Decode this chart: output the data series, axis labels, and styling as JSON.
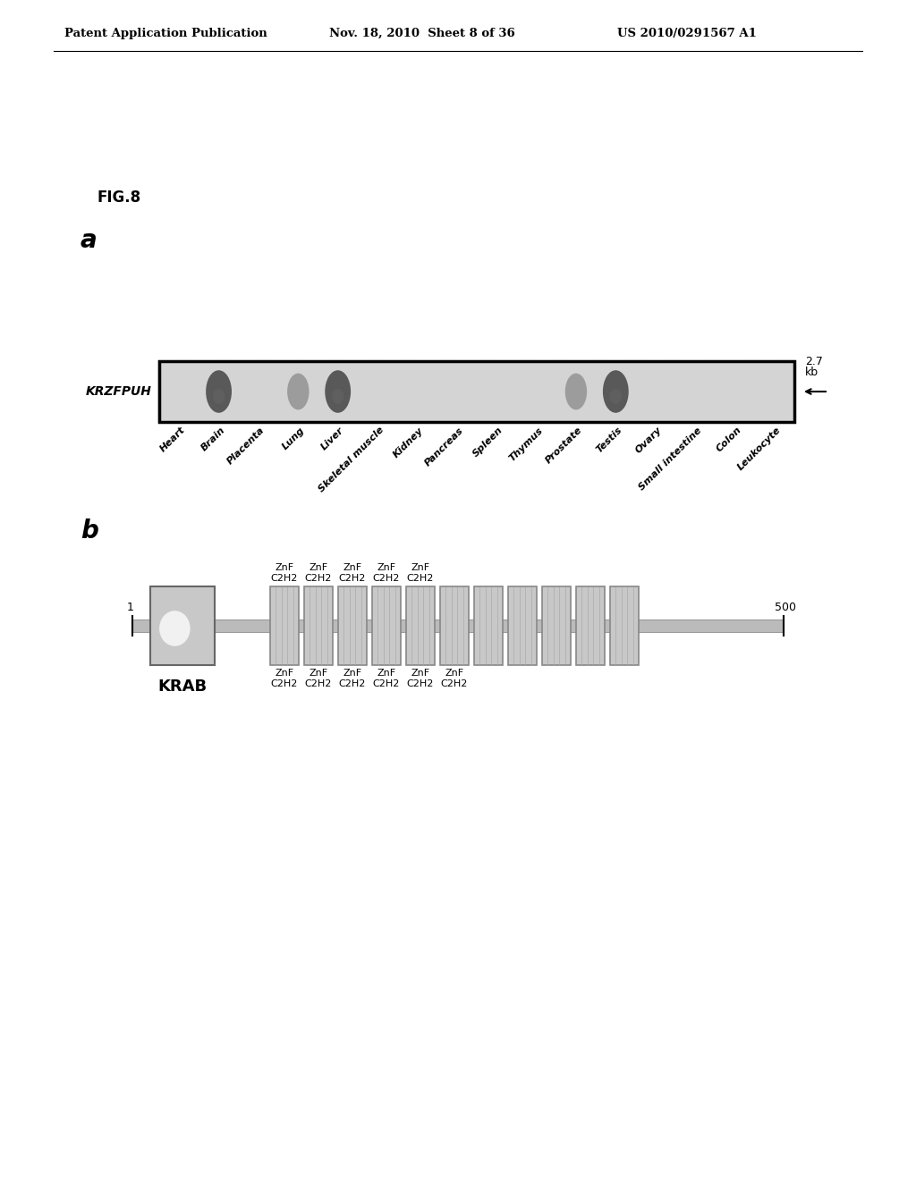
{
  "header_left": "Patent Application Publication",
  "header_mid": "Nov. 18, 2010  Sheet 8 of 36",
  "header_right": "US 2010/0291567 A1",
  "fig_label": "FIG.8",
  "panel_a_label": "a",
  "panel_b_label": "b",
  "blot_gene": "KRZFPUH",
  "blot_size_top": "2.7",
  "blot_size_bot": "kb",
  "blot_tissues": [
    "Heart",
    "Brain",
    "Placenta",
    "Lung",
    "Liver",
    "Skeletal muscle",
    "Kidney",
    "Pancreas",
    "Spleen",
    "Thymus",
    "Prostate",
    "Testis",
    "Ovary",
    "Small intestine",
    "Colon",
    "Leukocyte"
  ],
  "blot_dark_bands": [
    1,
    4,
    11
  ],
  "blot_medium_bands": [
    3,
    10
  ],
  "krab_label": "KRAB",
  "znf_top_labels": [
    "ZnF\nC2H2",
    "ZnF\nC2H2",
    "ZnF\nC2H2",
    "ZnF\nC2H2",
    "ZnF\nC2H2"
  ],
  "znf_top_indices": [
    0,
    1,
    2,
    3,
    4
  ],
  "znf_bottom_labels": [
    "ZnF\nC2H2",
    "ZnF\nC2H2",
    "ZnF\nC2H2",
    "ZnF\nC2H2",
    "ZnF\nC2H2",
    "ZnF\nC2H2"
  ],
  "znf_bottom_indices": [
    0,
    1,
    2,
    3,
    4,
    5
  ],
  "position_start": "1",
  "position_end": "500",
  "bg_color": "#ffffff",
  "blot_bg": "#cccccc",
  "domain_fill": "#c8c8c8",
  "domain_edge": "#888888",
  "backbone_color": "#bbbbbb",
  "krab_fill": "#c8c8c8"
}
